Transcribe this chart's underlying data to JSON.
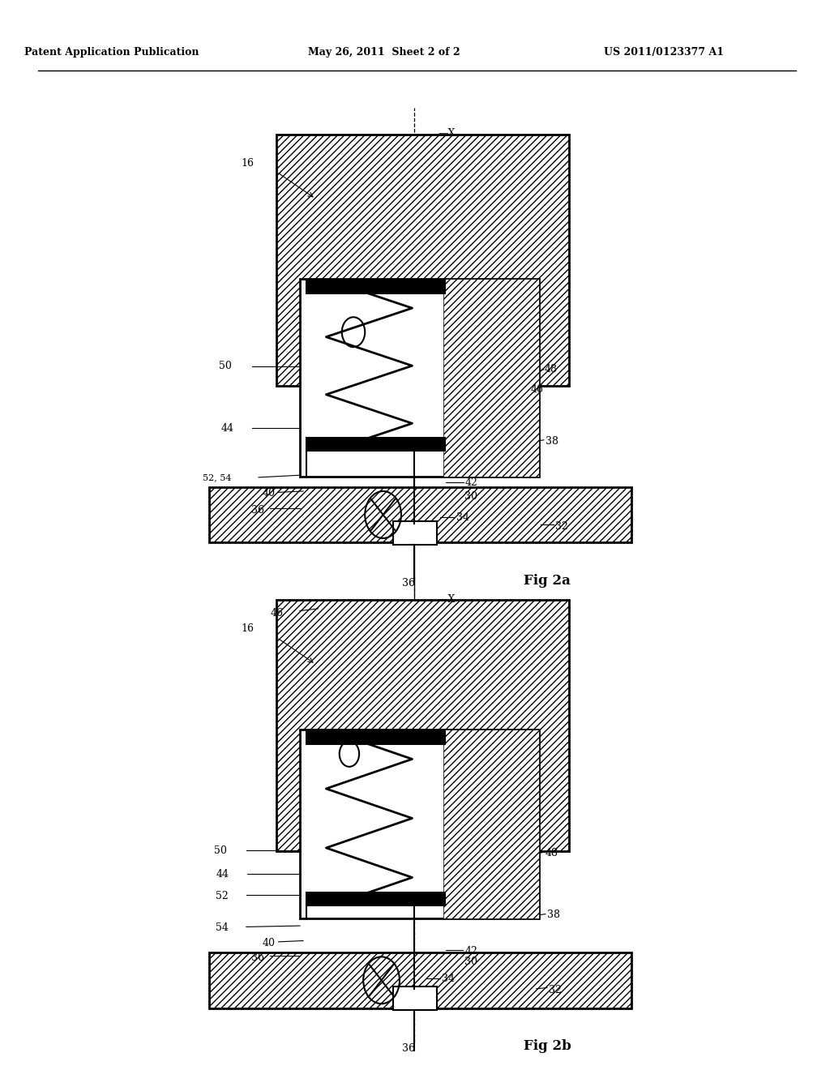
{
  "header_left": "Patent Application Publication",
  "header_mid": "May 26, 2011  Sheet 2 of 2",
  "header_right": "US 2011/0123377 A1",
  "fig2a_label": "Fig 2a",
  "fig2b_label": "Fig 2b",
  "bg_color": "#ffffff",
  "line_color": "#000000"
}
